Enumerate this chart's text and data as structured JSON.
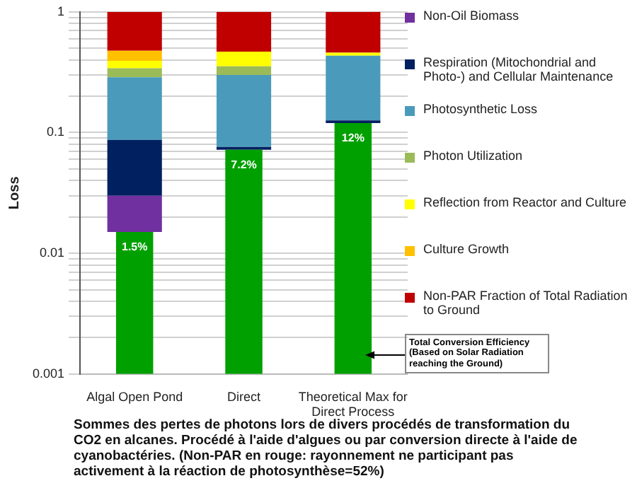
{
  "chart_data": {
    "type": "bar",
    "stacked": true,
    "log": "y",
    "ylabel": "Loss",
    "categories": [
      "Algal Open Pond",
      "Direct",
      "Theoretical Max for Direct Process"
    ],
    "series": [
      {
        "color": "#00a000",
        "values": [
          0.015,
          0.072,
          0.12
        ],
        "value_labels": [
          "1.5%",
          "7.2%",
          "12%"
        ]
      },
      {
        "name": "Non-Oil Biomass",
        "color": "#7030a0",
        "values": [
          0.015,
          null,
          null
        ]
      },
      {
        "name": "Respiration (Mitochondrial and Photo-) and Cellular Maintenance",
        "color": "#002060",
        "values": [
          0.057,
          0.004,
          0.006
        ]
      },
      {
        "name": "Photosynthetic Loss",
        "color": "#4a9bbb",
        "values": [
          0.2,
          0.224,
          0.308
        ]
      },
      {
        "name": "Photon Utilization",
        "color": "#9bbb59",
        "values": [
          0.054,
          0.054,
          null
        ]
      },
      {
        "name": "Reflection from Reactor and Culture",
        "color": "#ffff00",
        "values": [
          0.052,
          0.115,
          0.025
        ]
      },
      {
        "name": "Culture Growth",
        "color": "#ffc000",
        "values": [
          0.084,
          null,
          null
        ]
      },
      {
        "name": "Non-PAR Fraction of Total Radiation to Ground",
        "color": "#c00000",
        "values": [
          0.523,
          0.531,
          0.541
        ]
      }
    ],
    "ylim": [
      0.001,
      1
    ],
    "yticks": [
      0.001,
      {
        "value": 0.002,
        "label": null
      },
      {
        "value": 0.003,
        "label": null
      },
      {
        "value": 0.004,
        "label": null
      },
      {
        "value": 0.005,
        "label": null
      },
      {
        "value": 0.006,
        "label": null
      },
      {
        "value": 0.007,
        "label": null
      },
      {
        "value": 0.008,
        "label": null
      },
      {
        "value": 0.009,
        "label": null
      },
      0.01,
      {
        "value": 0.02,
        "label": null
      },
      {
        "value": 0.03,
        "label": null
      },
      {
        "value": 0.04,
        "label": null
      },
      {
        "value": 0.05,
        "label": null
      },
      {
        "value": 0.06,
        "label": null
      },
      {
        "value": 0.07,
        "label": null
      },
      {
        "value": 0.08,
        "label": null
      },
      {
        "value": 0.09,
        "label": null
      },
      0.1,
      {
        "value": 0.2,
        "label": null
      },
      {
        "value": 0.3,
        "label": null
      },
      {
        "value": 0.4,
        "label": null
      },
      {
        "value": 0.5,
        "label": null
      },
      {
        "value": 0.6,
        "label": null
      },
      {
        "value": 0.7,
        "label": null
      },
      {
        "value": 0.8,
        "label": null
      },
      {
        "value": 0.9,
        "label": null
      },
      1
    ],
    "grid": "y",
    "legend": "right",
    "annotations": [
      "Total Conversion Efficiency (Based on Solar Radiation reaching the Ground)",
      "Sommes des pertes de photons lors de divers procédés de transformation du CO2 en alcanes. Procédé à l'aide d'algues ou par conversion directe à l'aide de cyanobactéries. (Non-PAR en rouge: rayonnement ne participant pas activement à la réaction de photosynthèse=52%)"
    ]
  }
}
